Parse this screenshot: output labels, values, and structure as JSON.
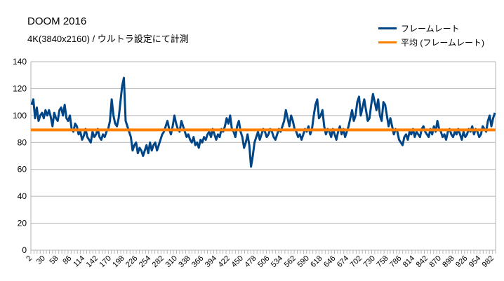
{
  "chart_data": {
    "type": "line",
    "title": "DOOM 2016",
    "subtitle": "4K(3840x2160) / ウルトラ設定にて計測",
    "ylim": [
      0,
      140
    ],
    "yticks": [
      0,
      20,
      40,
      60,
      80,
      100,
      120,
      140
    ],
    "grid": true,
    "legend_position": "top-right",
    "x_tick_labels": [
      "2",
      "30",
      "58",
      "86",
      "114",
      "142",
      "170",
      "198",
      "226",
      "254",
      "282",
      "310",
      "338",
      "366",
      "394",
      "422",
      "450",
      "478",
      "506",
      "534",
      "562",
      "590",
      "618",
      "646",
      "674",
      "702",
      "730",
      "758",
      "786",
      "814",
      "842",
      "870",
      "898",
      "926",
      "954",
      "982"
    ],
    "series": [
      {
        "name": "フレームレート",
        "color": "#004586",
        "values": [
          108,
          112,
          98,
          106,
          96,
          100,
          102,
          98,
          104,
          100,
          104,
          99,
          92,
          102,
          98,
          96,
          104,
          106,
          100,
          108,
          98,
          96,
          100,
          90,
          88,
          94,
          92,
          86,
          88,
          82,
          85,
          90,
          84,
          82,
          80,
          88,
          84,
          86,
          90,
          84,
          82,
          86,
          84,
          88,
          90,
          96,
          112,
          100,
          94,
          92,
          98,
          110,
          122,
          128,
          96,
          92,
          88,
          84,
          74,
          78,
          80,
          72,
          76,
          74,
          70,
          74,
          78,
          72,
          80,
          74,
          78,
          80,
          74,
          78,
          82,
          86,
          88,
          92,
          96,
          90,
          86,
          92,
          100,
          94,
          90,
          88,
          96,
          92,
          88,
          84,
          86,
          82,
          80,
          84,
          78,
          80,
          76,
          82,
          80,
          84,
          82,
          86,
          88,
          84,
          90,
          86,
          82,
          86,
          84,
          90,
          88,
          92,
          98,
          94,
          100,
          90,
          88,
          84,
          92,
          96,
          88,
          84,
          76,
          80,
          86,
          78,
          62,
          70,
          80,
          84,
          88,
          82,
          86,
          90,
          88,
          84,
          86,
          90,
          88,
          84,
          82,
          86,
          90,
          88,
          92,
          96,
          104,
          98,
          92,
          100,
          96,
          90,
          88,
          84,
          86,
          82,
          86,
          90,
          88,
          92,
          86,
          90,
          100,
          108,
          112,
          98,
          100,
          104,
          92,
          86,
          90,
          88,
          84,
          90,
          86,
          82,
          88,
          92,
          86,
          90,
          84,
          88,
          92,
          98,
          104,
          96,
          100,
          110,
          114,
          100,
          106,
          112,
          104,
          96,
          98,
          108,
          116,
          110,
          104,
          112,
          100,
          96,
          110,
          108,
          100,
          92,
          98,
          92,
          86,
          90,
          88,
          82,
          80,
          78,
          84,
          86,
          82,
          88,
          86,
          90,
          84,
          88,
          86,
          84,
          90,
          92,
          88,
          86,
          84,
          90,
          86,
          92,
          88,
          96,
          90,
          88,
          84,
          86,
          82,
          88,
          90,
          86,
          84,
          88,
          86,
          90,
          86,
          82,
          88,
          84,
          86,
          90,
          88,
          92,
          86,
          90,
          88,
          84,
          86,
          92,
          90,
          88,
          96,
          100,
          92,
          98,
          102
        ],
        "line_width": 3
      },
      {
        "name": "平均 (フレームレート)",
        "color": "#FF8000",
        "values": [
          89.3
        ],
        "line_width": 4
      }
    ]
  }
}
